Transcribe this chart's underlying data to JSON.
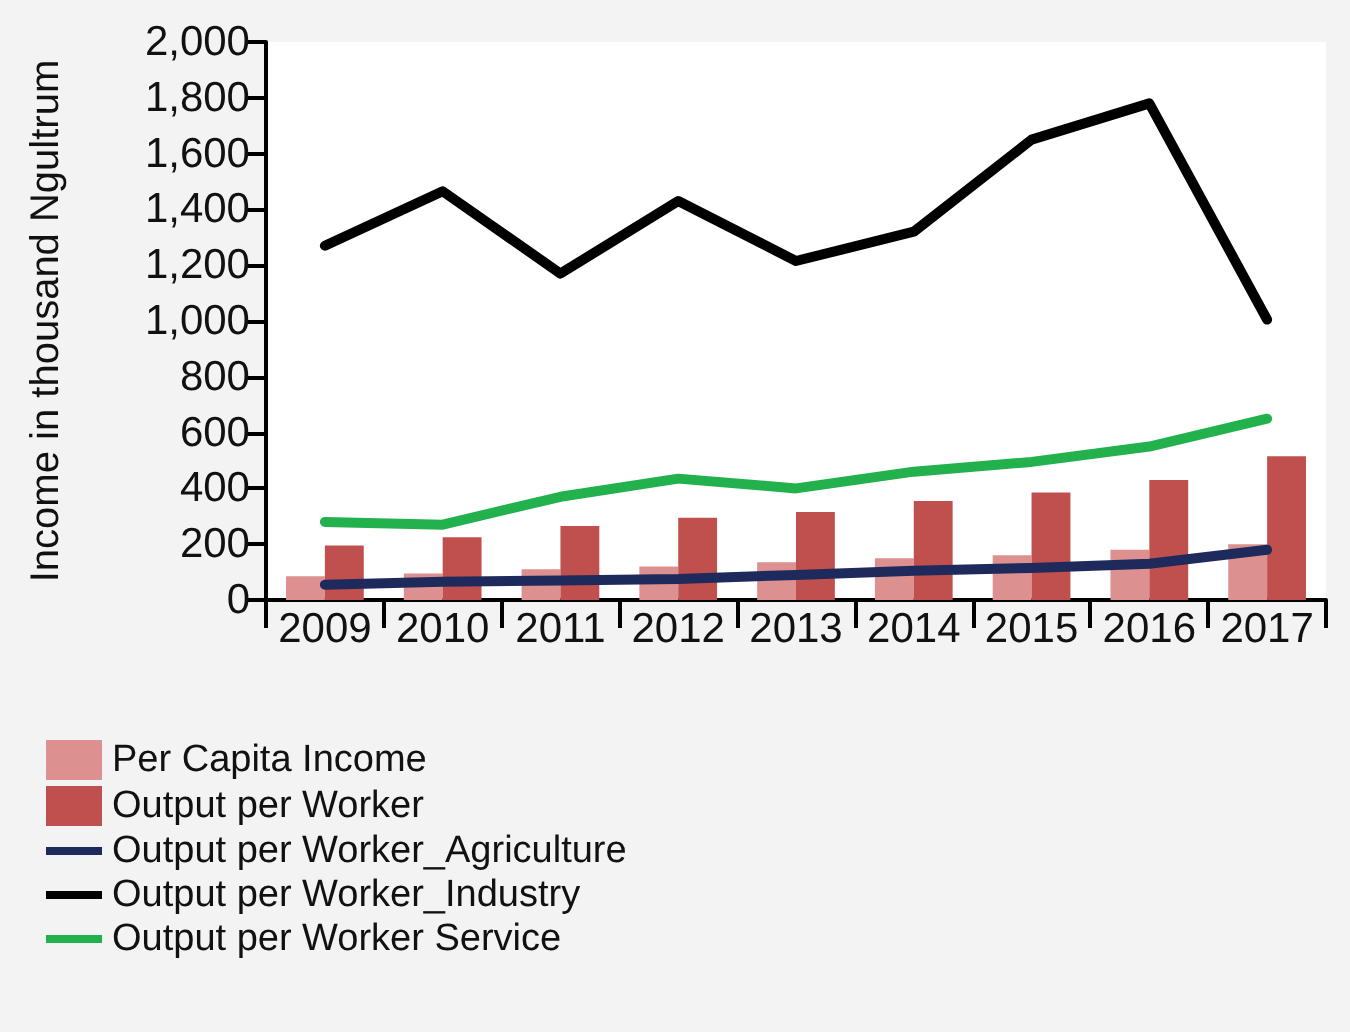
{
  "chart_data": {
    "type": "bar",
    "ylabel": "Income in thousand Ngultrum",
    "categories": [
      "2009",
      "2010",
      "2011",
      "2012",
      "2013",
      "2014",
      "2015",
      "2016",
      "2017"
    ],
    "series": [
      {
        "name": "Per Capita Income",
        "color": "#dc9090",
        "values": [
          85,
          95,
          110,
          120,
          135,
          150,
          160,
          180,
          200
        ]
      },
      {
        "name": "Output per Worker",
        "color": "#c0504d",
        "values": [
          195,
          225,
          265,
          295,
          315,
          355,
          385,
          430,
          515
        ]
      },
      {
        "name": "Output per Worker_Agriculture",
        "type": "line",
        "color": "#1f2a5c",
        "values": [
          55,
          65,
          70,
          75,
          90,
          105,
          115,
          130,
          180
        ]
      },
      {
        "name": "Output per Worker_Industry",
        "type": "line",
        "color": "#000000",
        "values": [
          1270,
          1465,
          1170,
          1430,
          1215,
          1320,
          1650,
          1780,
          1005
        ]
      },
      {
        "name": "Output per Worker Service",
        "type": "line",
        "color": "#22b14c",
        "values": [
          280,
          270,
          370,
          435,
          400,
          460,
          495,
          550,
          650
        ]
      }
    ],
    "ylim": [
      0,
      2000
    ],
    "yticks": [
      0,
      200,
      400,
      600,
      800,
      {
        "value": 1000,
        "label": "1,000"
      },
      {
        "value": 1200,
        "label": "1,200"
      },
      {
        "value": 1400,
        "label": "1,400"
      },
      {
        "value": 1600,
        "label": "1,600"
      },
      {
        "value": 1800,
        "label": "1,800"
      },
      {
        "value": 2000,
        "label": "2,000"
      }
    ],
    "grid": false,
    "legend": "bottom left",
    "marker": "none",
    "line_style": "solid"
  }
}
